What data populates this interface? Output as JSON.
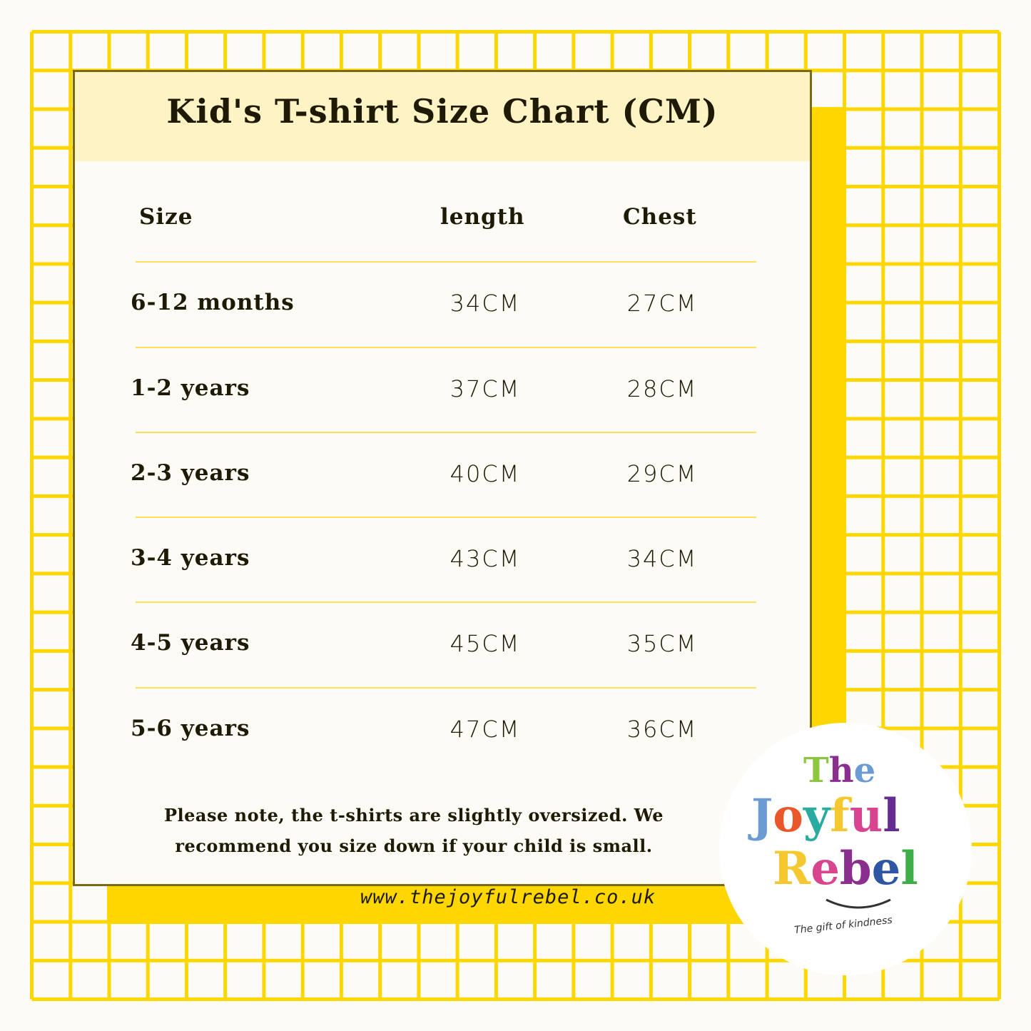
{
  "title": "Kid's T-shirt Size Chart (CM)",
  "table": {
    "headers": [
      "Size",
      "length",
      "Chest"
    ],
    "rows": [
      {
        "size": "6-12 months",
        "length": "34CM",
        "chest": "27CM"
      },
      {
        "size": "1-2 years",
        "length": "37CM",
        "chest": "28CM"
      },
      {
        "size": "2-3 years",
        "length": "40CM",
        "chest": "29CM"
      },
      {
        "size": "3-4 years",
        "length": "43CM",
        "chest": "34CM"
      },
      {
        "size": "4-5 years",
        "length": "45CM",
        "chest": "35CM"
      },
      {
        "size": "5-6 years",
        "length": "47CM",
        "chest": "36CM"
      }
    ]
  },
  "note": {
    "line1": "Please note, the t-shirts are slightly oversized.  We",
    "line2": "recommend you size down if your child is small."
  },
  "website": "www.thejoyfulrebel.co.uk",
  "logo": {
    "the": "The",
    "joyful": "Joyful",
    "rebel": "Rebel",
    "tagline": "The gift of kindness"
  },
  "colors": {
    "grid": "#ffd700",
    "header_band": "#fdf3c4",
    "divider": "#ffe05a",
    "card_border": "#7a6a12"
  }
}
